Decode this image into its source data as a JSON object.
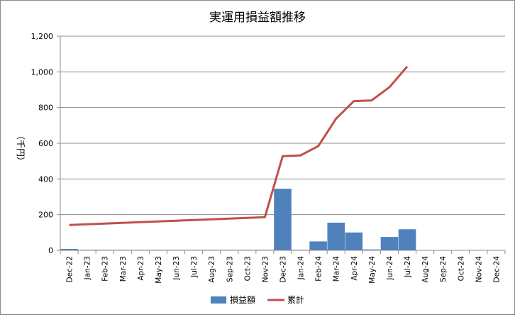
{
  "chart_data": {
    "type": "bar",
    "title": "実運用損益額推移",
    "xlabel": "",
    "ylabel": "（千円）",
    "ylim": [
      0,
      1200
    ],
    "yticks": [
      0,
      200,
      400,
      600,
      800,
      1000,
      1200
    ],
    "ytick_labels": [
      "0",
      "200",
      "400",
      "600",
      "800",
      "1,000",
      "1,200"
    ],
    "grid": true,
    "legend_position": "bottom",
    "categories": [
      "Dec-22",
      "Jan-23",
      "Feb-23",
      "Mar-23",
      "Apr-23",
      "May-23",
      "Jun-23",
      "Jul-23",
      "Aug-23",
      "Sep-23",
      "Oct-23",
      "Nov-23",
      "Dec-23",
      "Jan-24",
      "Feb-24",
      "Mar-24",
      "Apr-24",
      "May-24",
      "Jun-24",
      "Jul-24",
      "Aug-24",
      "Sep-24",
      "Oct-24",
      "Nov-24",
      "Dec-24"
    ],
    "series": [
      {
        "name": "損益額",
        "type": "bar",
        "color": "#4f81bd",
        "values": [
          8,
          3,
          3,
          3,
          3,
          3,
          3,
          3,
          3,
          3,
          3,
          3,
          345,
          3,
          50,
          155,
          100,
          5,
          75,
          118,
          null,
          null,
          null,
          null,
          null
        ]
      },
      {
        "name": "累計",
        "type": "line",
        "color": "#c0504d",
        "values": [
          142,
          146,
          150,
          154,
          158,
          162,
          166,
          170,
          174,
          178,
          182,
          186,
          528,
          532,
          584,
          738,
          836,
          840,
          914,
          1030,
          null,
          null,
          null,
          null,
          null
        ]
      }
    ]
  }
}
